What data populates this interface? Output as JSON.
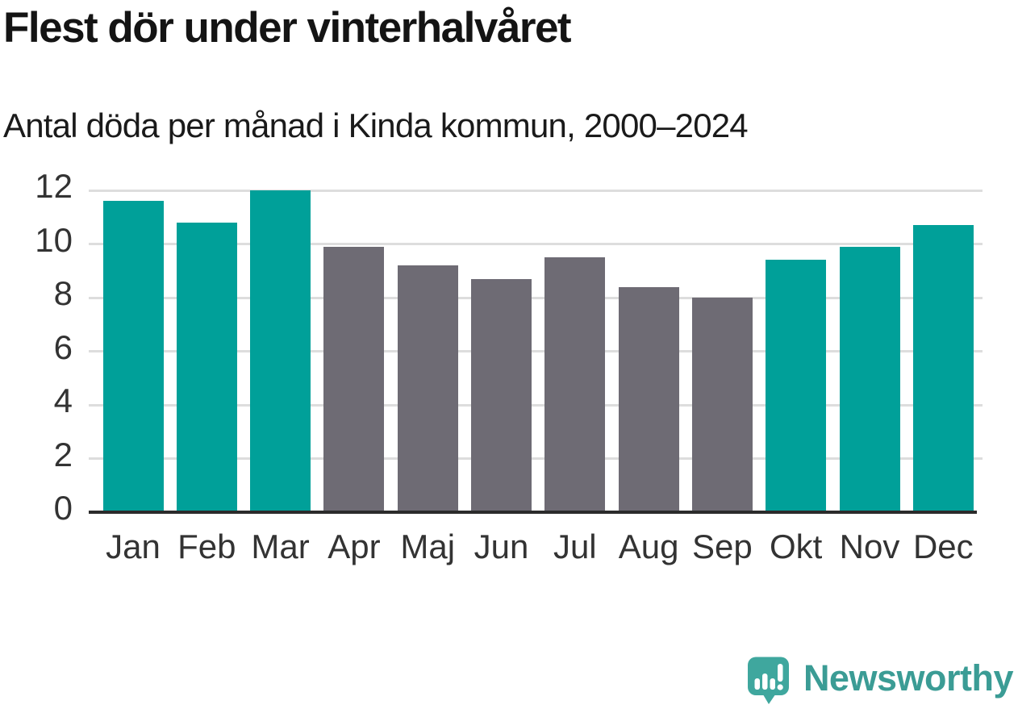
{
  "header": {
    "title": "Flest dör under vinterhalvåret",
    "subtitle": "Antal döda per månad i Kinda kommun, 2000–2024"
  },
  "chart_data": {
    "type": "bar",
    "title": "Flest dör under vinterhalvåret",
    "subtitle": "Antal döda per månad i Kinda kommun, 2000–2024",
    "categories": [
      "Jan",
      "Feb",
      "Mar",
      "Apr",
      "Maj",
      "Jun",
      "Jul",
      "Aug",
      "Sep",
      "Okt",
      "Nov",
      "Dec"
    ],
    "values": [
      11.6,
      10.8,
      12.0,
      9.9,
      9.2,
      8.7,
      9.5,
      8.4,
      8.0,
      9.4,
      9.9,
      10.7
    ],
    "bar_colors": [
      "#00A099",
      "#00A099",
      "#00A099",
      "#6E6B74",
      "#6E6B74",
      "#6E6B74",
      "#6E6B74",
      "#6E6B74",
      "#6E6B74",
      "#00A099",
      "#00A099",
      "#00A099"
    ],
    "highlight_color": "#00A099",
    "muted_color": "#6E6B74",
    "highlighted_categories": [
      "Jan",
      "Feb",
      "Mar",
      "Okt",
      "Nov",
      "Dec"
    ],
    "xlabel": "",
    "ylabel": "",
    "ylim": [
      0,
      12
    ],
    "y_ticks": [
      0,
      2,
      4,
      6,
      8,
      10,
      12
    ],
    "grid": "horizontal",
    "gridline_color": "#DDDDDD",
    "axis_line_color": "#2B2B2B",
    "tick_label_color": "#333333",
    "legend": "none"
  },
  "branding": {
    "logo_text": "Newsworthy",
    "logo_text_color": "#3B9C95",
    "logo_icon": "speech-bubble-bar-chart-exclamation",
    "logo_icon_color": "#3FA79E"
  }
}
